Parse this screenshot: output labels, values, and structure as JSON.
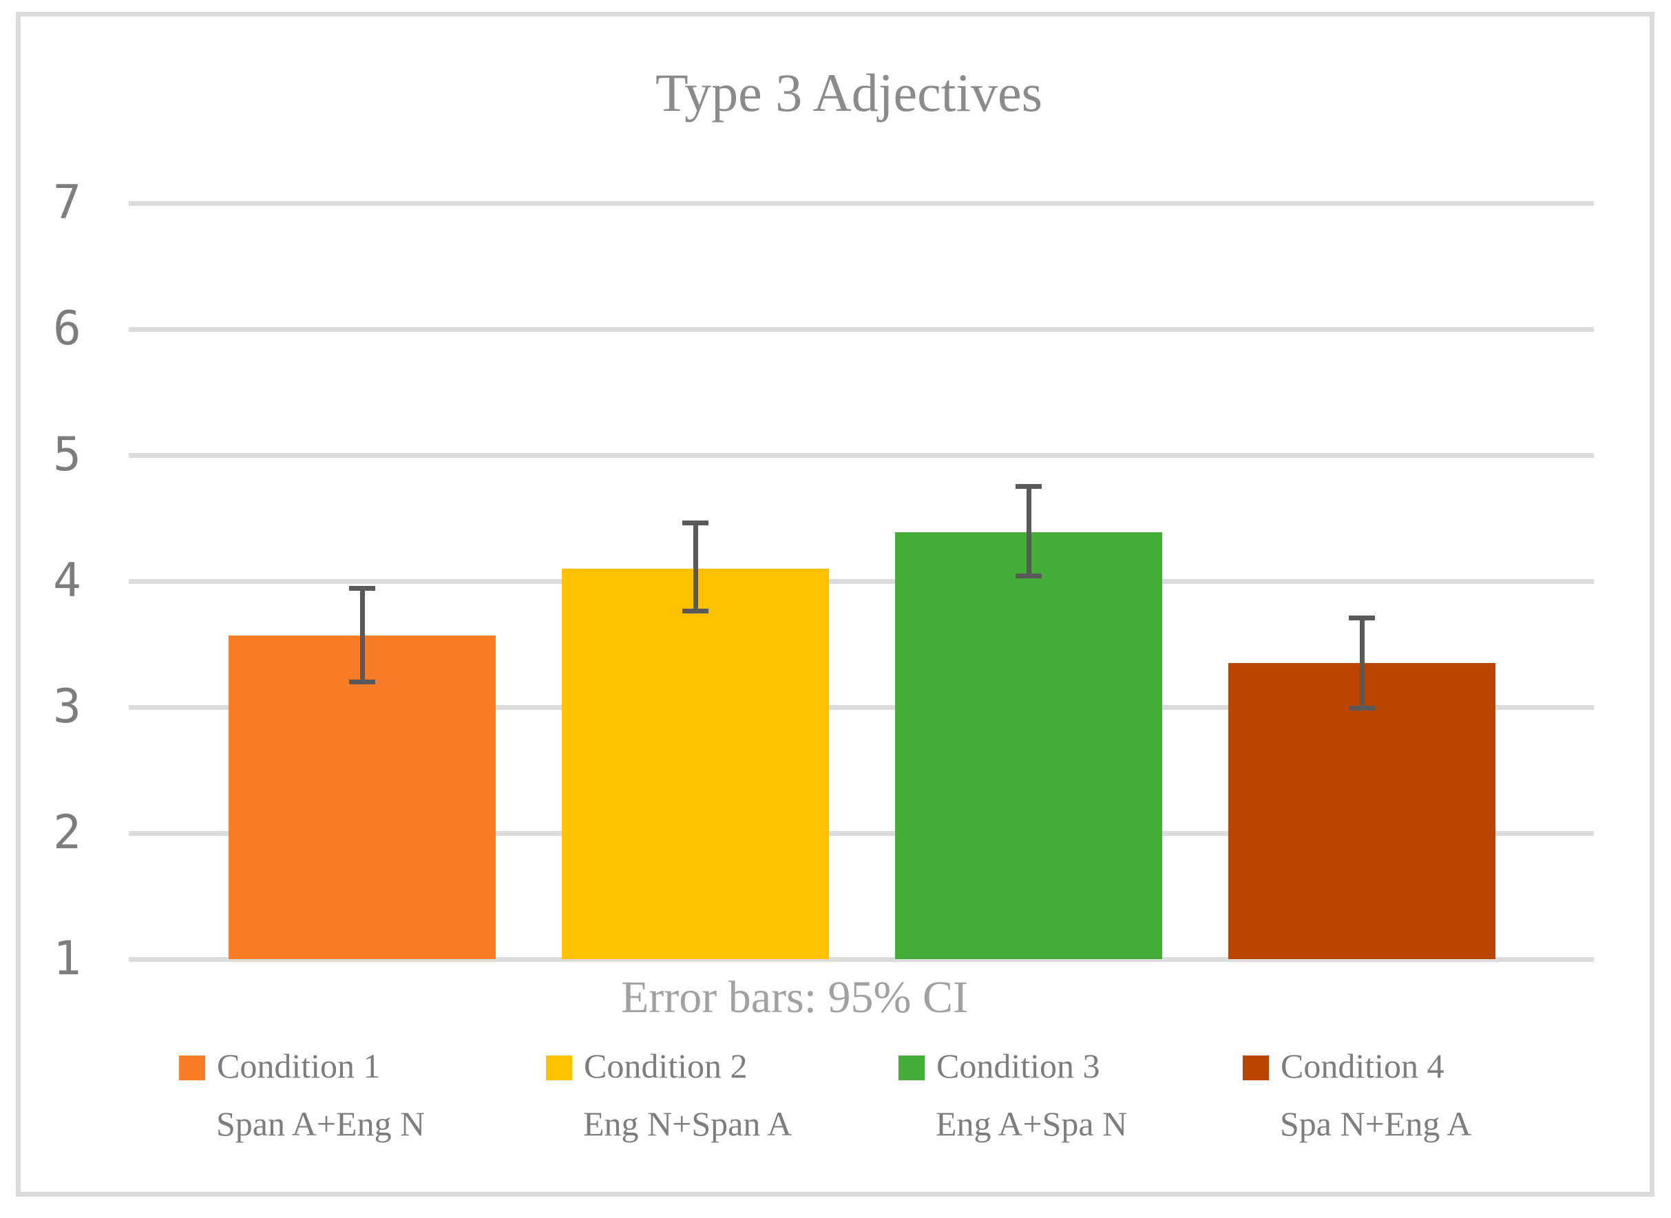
{
  "chart_data": {
    "type": "bar",
    "title": "Type 3 Adjectives",
    "error_note": "Error bars: 95% CI",
    "ylim": [
      1,
      7
    ],
    "yticks": [
      1,
      2,
      3,
      4,
      5,
      6,
      7
    ],
    "grid": true,
    "legend_position": "bottom",
    "xlabel": "",
    "ylabel": "",
    "series": [
      {
        "name": "Condition 1",
        "sublabel": "Span A+Eng N",
        "value": 3.57,
        "ci_low": 3.2,
        "ci_high": 3.94,
        "color": "#F97D27"
      },
      {
        "name": "Condition 2",
        "sublabel": "Eng N+Span A",
        "value": 4.1,
        "ci_low": 3.76,
        "ci_high": 4.46,
        "color": "#FFC000"
      },
      {
        "name": "Condition 3",
        "sublabel": "Eng A+Spa N",
        "value": 4.39,
        "ci_low": 4.04,
        "ci_high": 4.75,
        "color": "#45AE38"
      },
      {
        "name": "Condition 4",
        "sublabel": "Spa N+Eng A",
        "value": 3.35,
        "ci_low": 2.99,
        "ci_high": 3.71,
        "color": "#BA4503"
      }
    ],
    "colors": {
      "frame": "#DBDBDB",
      "gridline": "#DCDCDC",
      "error_bar": "#595959",
      "title_text": "#8B8B8B",
      "tick_text": "#7D7D7D",
      "legend_text": "#7D7D7D",
      "note_text": "#A1A1A1",
      "background": "#FFFFFF"
    }
  }
}
